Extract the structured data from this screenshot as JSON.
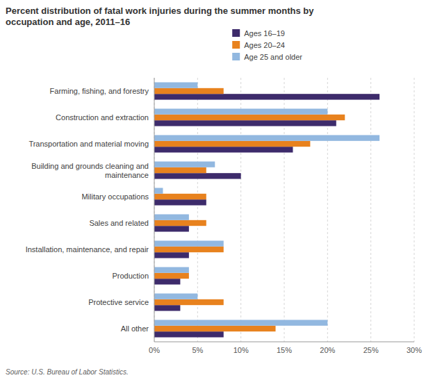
{
  "chart_data": {
    "type": "bar",
    "orientation": "horizontal",
    "title": "Percent distribution of fatal work injuries during the summer months by\noccupation and age, 2011–16",
    "source": "Source: U.S. Bureau of Labor Statistics.",
    "categories": [
      "All other",
      "Protective service",
      "Production",
      "Installation, maintenance, and repair",
      "Sales and related",
      "Military occupations",
      "Building and grounds cleaning and\nmaintenance",
      "Transportation and material moving",
      "Construction and extraction",
      "Farming, fishing, and forestry"
    ],
    "series": [
      {
        "name": "Ages 16–19",
        "color": "#3d2b6b",
        "values": [
          8,
          3,
          3,
          4,
          4,
          6,
          10,
          16,
          21,
          26
        ]
      },
      {
        "name": "Ages 20–24",
        "color": "#e8821e",
        "values": [
          14,
          8,
          4,
          8,
          6,
          6,
          6,
          18,
          22,
          8
        ]
      },
      {
        "name": "Age 25 and older",
        "color": "#92b8e0",
        "values": [
          20,
          5,
          4,
          8,
          4,
          1,
          7,
          26,
          20,
          5
        ]
      }
    ],
    "xlim": [
      0,
      30
    ],
    "xticks": [
      {
        "value": 0,
        "label": "0%"
      },
      {
        "value": 5,
        "label": "5%"
      },
      {
        "value": 10,
        "label": "10%"
      },
      {
        "value": 15,
        "label": "15%"
      },
      {
        "value": 20,
        "label": "20%"
      },
      {
        "value": 25,
        "label": "25%"
      },
      {
        "value": 30,
        "label": "30%"
      }
    ],
    "grid": true,
    "legend": "top"
  }
}
